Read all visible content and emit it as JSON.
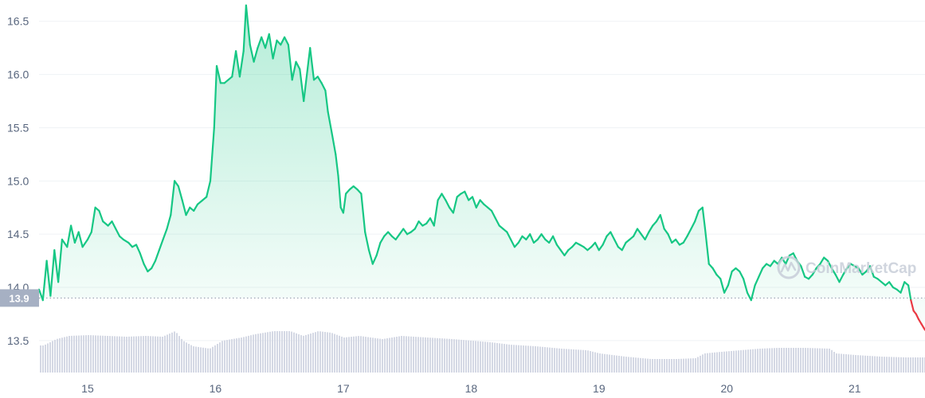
{
  "chart_data": {
    "type": "area",
    "x_unit": "day",
    "x_ticks": [
      {
        "x": 15,
        "label": "15"
      },
      {
        "x": 16,
        "label": "16"
      },
      {
        "x": 17,
        "label": "17"
      },
      {
        "x": 18,
        "label": "18"
      },
      {
        "x": 19,
        "label": "19"
      },
      {
        "x": 20,
        "label": "20"
      },
      {
        "x": 21,
        "label": "21"
      }
    ],
    "y_ticks": [
      13.5,
      14.0,
      14.5,
      15.0,
      15.5,
      16.0,
      16.5
    ],
    "y_tick_labels": [
      "13.5",
      "14.0",
      "14.5",
      "15.0",
      "15.5",
      "16.0",
      "16.5"
    ],
    "xlim": [
      14.62,
      21.55
    ],
    "ylim": [
      13.2,
      16.7
    ],
    "grid": true,
    "reference_line": {
      "value": 13.9,
      "label": "13.9",
      "style": "dotted"
    },
    "colors": {
      "up_line": "#16c784",
      "down_line": "#ea3943",
      "area_top": "#16c784",
      "volume_bar": "#d4d8e4",
      "grid": "#eff2f5",
      "axis_text": "#58667e",
      "badge_bg": "#a6b0c3",
      "watermark": "#c8ced9"
    },
    "series": [
      {
        "points": [
          [
            14.62,
            13.98
          ],
          [
            14.65,
            13.88
          ],
          [
            14.68,
            14.25
          ],
          [
            14.71,
            13.92
          ],
          [
            14.74,
            14.35
          ],
          [
            14.77,
            14.05
          ],
          [
            14.8,
            14.45
          ],
          [
            14.84,
            14.38
          ],
          [
            14.87,
            14.58
          ],
          [
            14.9,
            14.42
          ],
          [
            14.93,
            14.52
          ],
          [
            14.96,
            14.38
          ],
          [
            15.0,
            14.45
          ],
          [
            15.03,
            14.52
          ],
          [
            15.06,
            14.75
          ],
          [
            15.09,
            14.72
          ],
          [
            15.12,
            14.62
          ],
          [
            15.16,
            14.58
          ],
          [
            15.19,
            14.62
          ],
          [
            15.22,
            14.55
          ],
          [
            15.25,
            14.48
          ],
          [
            15.28,
            14.45
          ],
          [
            15.32,
            14.42
          ],
          [
            15.35,
            14.38
          ],
          [
            15.38,
            14.4
          ],
          [
            15.41,
            14.32
          ],
          [
            15.44,
            14.22
          ],
          [
            15.47,
            14.15
          ],
          [
            15.5,
            14.18
          ],
          [
            15.53,
            14.25
          ],
          [
            15.56,
            14.35
          ],
          [
            15.59,
            14.45
          ],
          [
            15.62,
            14.55
          ],
          [
            15.65,
            14.68
          ],
          [
            15.68,
            15.0
          ],
          [
            15.71,
            14.95
          ],
          [
            15.74,
            14.82
          ],
          [
            15.77,
            14.68
          ],
          [
            15.8,
            14.75
          ],
          [
            15.83,
            14.72
          ],
          [
            15.86,
            14.78
          ],
          [
            15.9,
            14.82
          ],
          [
            15.93,
            14.85
          ],
          [
            15.96,
            15.0
          ],
          [
            15.99,
            15.5
          ],
          [
            16.01,
            16.08
          ],
          [
            16.04,
            15.92
          ],
          [
            16.07,
            15.92
          ],
          [
            16.1,
            15.95
          ],
          [
            16.13,
            15.98
          ],
          [
            16.16,
            16.22
          ],
          [
            16.19,
            15.98
          ],
          [
            16.22,
            16.22
          ],
          [
            16.24,
            16.65
          ],
          [
            16.27,
            16.28
          ],
          [
            16.3,
            16.12
          ],
          [
            16.33,
            16.25
          ],
          [
            16.36,
            16.35
          ],
          [
            16.39,
            16.25
          ],
          [
            16.42,
            16.38
          ],
          [
            16.45,
            16.15
          ],
          [
            16.48,
            16.32
          ],
          [
            16.51,
            16.28
          ],
          [
            16.54,
            16.35
          ],
          [
            16.57,
            16.28
          ],
          [
            16.6,
            15.95
          ],
          [
            16.63,
            16.12
          ],
          [
            16.66,
            16.05
          ],
          [
            16.69,
            15.75
          ],
          [
            16.72,
            16.05
          ],
          [
            16.74,
            16.25
          ],
          [
            16.77,
            15.95
          ],
          [
            16.8,
            15.98
          ],
          [
            16.83,
            15.92
          ],
          [
            16.86,
            15.85
          ],
          [
            16.88,
            15.65
          ],
          [
            16.91,
            15.45
          ],
          [
            16.94,
            15.25
          ],
          [
            16.96,
            15.05
          ],
          [
            16.98,
            14.75
          ],
          [
            17.0,
            14.7
          ],
          [
            17.02,
            14.88
          ],
          [
            17.05,
            14.92
          ],
          [
            17.08,
            14.95
          ],
          [
            17.11,
            14.92
          ],
          [
            17.14,
            14.88
          ],
          [
            17.17,
            14.52
          ],
          [
            17.2,
            14.35
          ],
          [
            17.23,
            14.22
          ],
          [
            17.26,
            14.3
          ],
          [
            17.29,
            14.42
          ],
          [
            17.32,
            14.48
          ],
          [
            17.35,
            14.52
          ],
          [
            17.38,
            14.48
          ],
          [
            17.41,
            14.45
          ],
          [
            17.44,
            14.5
          ],
          [
            17.47,
            14.55
          ],
          [
            17.5,
            14.5
          ],
          [
            17.53,
            14.52
          ],
          [
            17.56,
            14.55
          ],
          [
            17.59,
            14.62
          ],
          [
            17.62,
            14.58
          ],
          [
            17.65,
            14.6
          ],
          [
            17.68,
            14.65
          ],
          [
            17.71,
            14.58
          ],
          [
            17.74,
            14.82
          ],
          [
            17.77,
            14.88
          ],
          [
            17.8,
            14.82
          ],
          [
            17.83,
            14.75
          ],
          [
            17.86,
            14.7
          ],
          [
            17.89,
            14.85
          ],
          [
            17.92,
            14.88
          ],
          [
            17.95,
            14.9
          ],
          [
            17.98,
            14.82
          ],
          [
            18.01,
            14.85
          ],
          [
            18.04,
            14.75
          ],
          [
            18.07,
            14.82
          ],
          [
            18.1,
            14.78
          ],
          [
            18.13,
            14.75
          ],
          [
            18.16,
            14.72
          ],
          [
            18.19,
            14.65
          ],
          [
            18.22,
            14.58
          ],
          [
            18.25,
            14.55
          ],
          [
            18.28,
            14.52
          ],
          [
            18.31,
            14.45
          ],
          [
            18.34,
            14.38
          ],
          [
            18.37,
            14.42
          ],
          [
            18.4,
            14.48
          ],
          [
            18.43,
            14.45
          ],
          [
            18.46,
            14.5
          ],
          [
            18.49,
            14.42
          ],
          [
            18.52,
            14.45
          ],
          [
            18.55,
            14.5
          ],
          [
            18.58,
            14.45
          ],
          [
            18.61,
            14.42
          ],
          [
            18.64,
            14.48
          ],
          [
            18.67,
            14.4
          ],
          [
            18.7,
            14.35
          ],
          [
            18.73,
            14.3
          ],
          [
            18.76,
            14.35
          ],
          [
            18.79,
            14.38
          ],
          [
            18.82,
            14.42
          ],
          [
            18.85,
            14.4
          ],
          [
            18.88,
            14.38
          ],
          [
            18.91,
            14.35
          ],
          [
            18.94,
            14.38
          ],
          [
            18.97,
            14.42
          ],
          [
            19.0,
            14.35
          ],
          [
            19.03,
            14.4
          ],
          [
            19.06,
            14.48
          ],
          [
            19.09,
            14.52
          ],
          [
            19.12,
            14.45
          ],
          [
            19.15,
            14.38
          ],
          [
            19.18,
            14.35
          ],
          [
            19.21,
            14.42
          ],
          [
            19.24,
            14.45
          ],
          [
            19.27,
            14.48
          ],
          [
            19.3,
            14.55
          ],
          [
            19.33,
            14.5
          ],
          [
            19.36,
            14.45
          ],
          [
            19.39,
            14.52
          ],
          [
            19.42,
            14.58
          ],
          [
            19.45,
            14.62
          ],
          [
            19.48,
            14.68
          ],
          [
            19.51,
            14.55
          ],
          [
            19.54,
            14.5
          ],
          [
            19.57,
            14.42
          ],
          [
            19.6,
            14.45
          ],
          [
            19.63,
            14.4
          ],
          [
            19.66,
            14.42
          ],
          [
            19.69,
            14.48
          ],
          [
            19.72,
            14.55
          ],
          [
            19.75,
            14.62
          ],
          [
            19.78,
            14.72
          ],
          [
            19.81,
            14.75
          ],
          [
            19.83,
            14.55
          ],
          [
            19.86,
            14.22
          ],
          [
            19.89,
            14.18
          ],
          [
            19.92,
            14.12
          ],
          [
            19.95,
            14.08
          ],
          [
            19.98,
            13.95
          ],
          [
            20.01,
            14.02
          ],
          [
            20.04,
            14.15
          ],
          [
            20.07,
            14.18
          ],
          [
            20.1,
            14.15
          ],
          [
            20.13,
            14.08
          ],
          [
            20.16,
            13.95
          ],
          [
            20.19,
            13.88
          ],
          [
            20.22,
            14.02
          ],
          [
            20.25,
            14.1
          ],
          [
            20.28,
            14.18
          ],
          [
            20.31,
            14.22
          ],
          [
            20.34,
            14.2
          ],
          [
            20.37,
            14.25
          ],
          [
            20.4,
            14.22
          ],
          [
            20.43,
            14.28
          ],
          [
            20.46,
            14.22
          ],
          [
            20.49,
            14.3
          ],
          [
            20.52,
            14.32
          ],
          [
            20.55,
            14.25
          ],
          [
            20.58,
            14.2
          ],
          [
            20.61,
            14.1
          ],
          [
            20.64,
            14.08
          ],
          [
            20.67,
            14.12
          ],
          [
            20.7,
            14.18
          ],
          [
            20.73,
            14.22
          ],
          [
            20.76,
            14.28
          ],
          [
            20.79,
            14.25
          ],
          [
            20.82,
            14.18
          ],
          [
            20.85,
            14.12
          ],
          [
            20.88,
            14.05
          ],
          [
            20.91,
            14.12
          ],
          [
            20.94,
            14.18
          ],
          [
            20.97,
            14.22
          ],
          [
            21.0,
            14.2
          ],
          [
            21.03,
            14.18
          ],
          [
            21.06,
            14.12
          ],
          [
            21.09,
            14.15
          ],
          [
            21.12,
            14.2
          ],
          [
            21.15,
            14.1
          ],
          [
            21.18,
            14.08
          ],
          [
            21.21,
            14.05
          ],
          [
            21.24,
            14.02
          ],
          [
            21.27,
            14.05
          ],
          [
            21.3,
            14.0
          ],
          [
            21.33,
            13.98
          ],
          [
            21.36,
            13.95
          ],
          [
            21.39,
            14.05
          ],
          [
            21.42,
            14.02
          ],
          [
            21.44,
            13.88
          ],
          [
            21.46,
            13.78
          ],
          [
            21.48,
            13.75
          ],
          [
            21.5,
            13.7
          ],
          [
            21.52,
            13.66
          ],
          [
            21.54,
            13.62
          ],
          [
            21.55,
            13.6
          ]
        ]
      }
    ],
    "volume": [
      [
        14.65,
        0.34
      ],
      [
        14.75,
        0.42
      ],
      [
        14.85,
        0.46
      ],
      [
        15.0,
        0.47
      ],
      [
        15.15,
        0.46
      ],
      [
        15.3,
        0.45
      ],
      [
        15.45,
        0.46
      ],
      [
        15.58,
        0.45
      ],
      [
        15.68,
        0.52
      ],
      [
        15.74,
        0.4
      ],
      [
        15.82,
        0.33
      ],
      [
        15.95,
        0.3
      ],
      [
        16.05,
        0.4
      ],
      [
        16.2,
        0.44
      ],
      [
        16.3,
        0.48
      ],
      [
        16.45,
        0.52
      ],
      [
        16.58,
        0.52
      ],
      [
        16.68,
        0.46
      ],
      [
        16.8,
        0.52
      ],
      [
        16.9,
        0.5
      ],
      [
        17.0,
        0.44
      ],
      [
        17.12,
        0.46
      ],
      [
        17.3,
        0.42
      ],
      [
        17.45,
        0.46
      ],
      [
        17.65,
        0.44
      ],
      [
        17.85,
        0.42
      ],
      [
        18.0,
        0.4
      ],
      [
        18.15,
        0.38
      ],
      [
        18.3,
        0.35
      ],
      [
        18.5,
        0.33
      ],
      [
        18.7,
        0.3
      ],
      [
        18.9,
        0.28
      ],
      [
        19.0,
        0.24
      ],
      [
        19.2,
        0.2
      ],
      [
        19.4,
        0.17
      ],
      [
        19.6,
        0.17
      ],
      [
        19.75,
        0.18
      ],
      [
        19.82,
        0.24
      ],
      [
        19.95,
        0.26
      ],
      [
        20.1,
        0.28
      ],
      [
        20.25,
        0.3
      ],
      [
        20.4,
        0.31
      ],
      [
        20.6,
        0.31
      ],
      [
        20.8,
        0.3
      ],
      [
        20.85,
        0.24
      ],
      [
        21.0,
        0.22
      ],
      [
        21.2,
        0.2
      ],
      [
        21.4,
        0.19
      ],
      [
        21.55,
        0.19
      ]
    ]
  },
  "watermark": {
    "text": "CoinMarketCap"
  }
}
